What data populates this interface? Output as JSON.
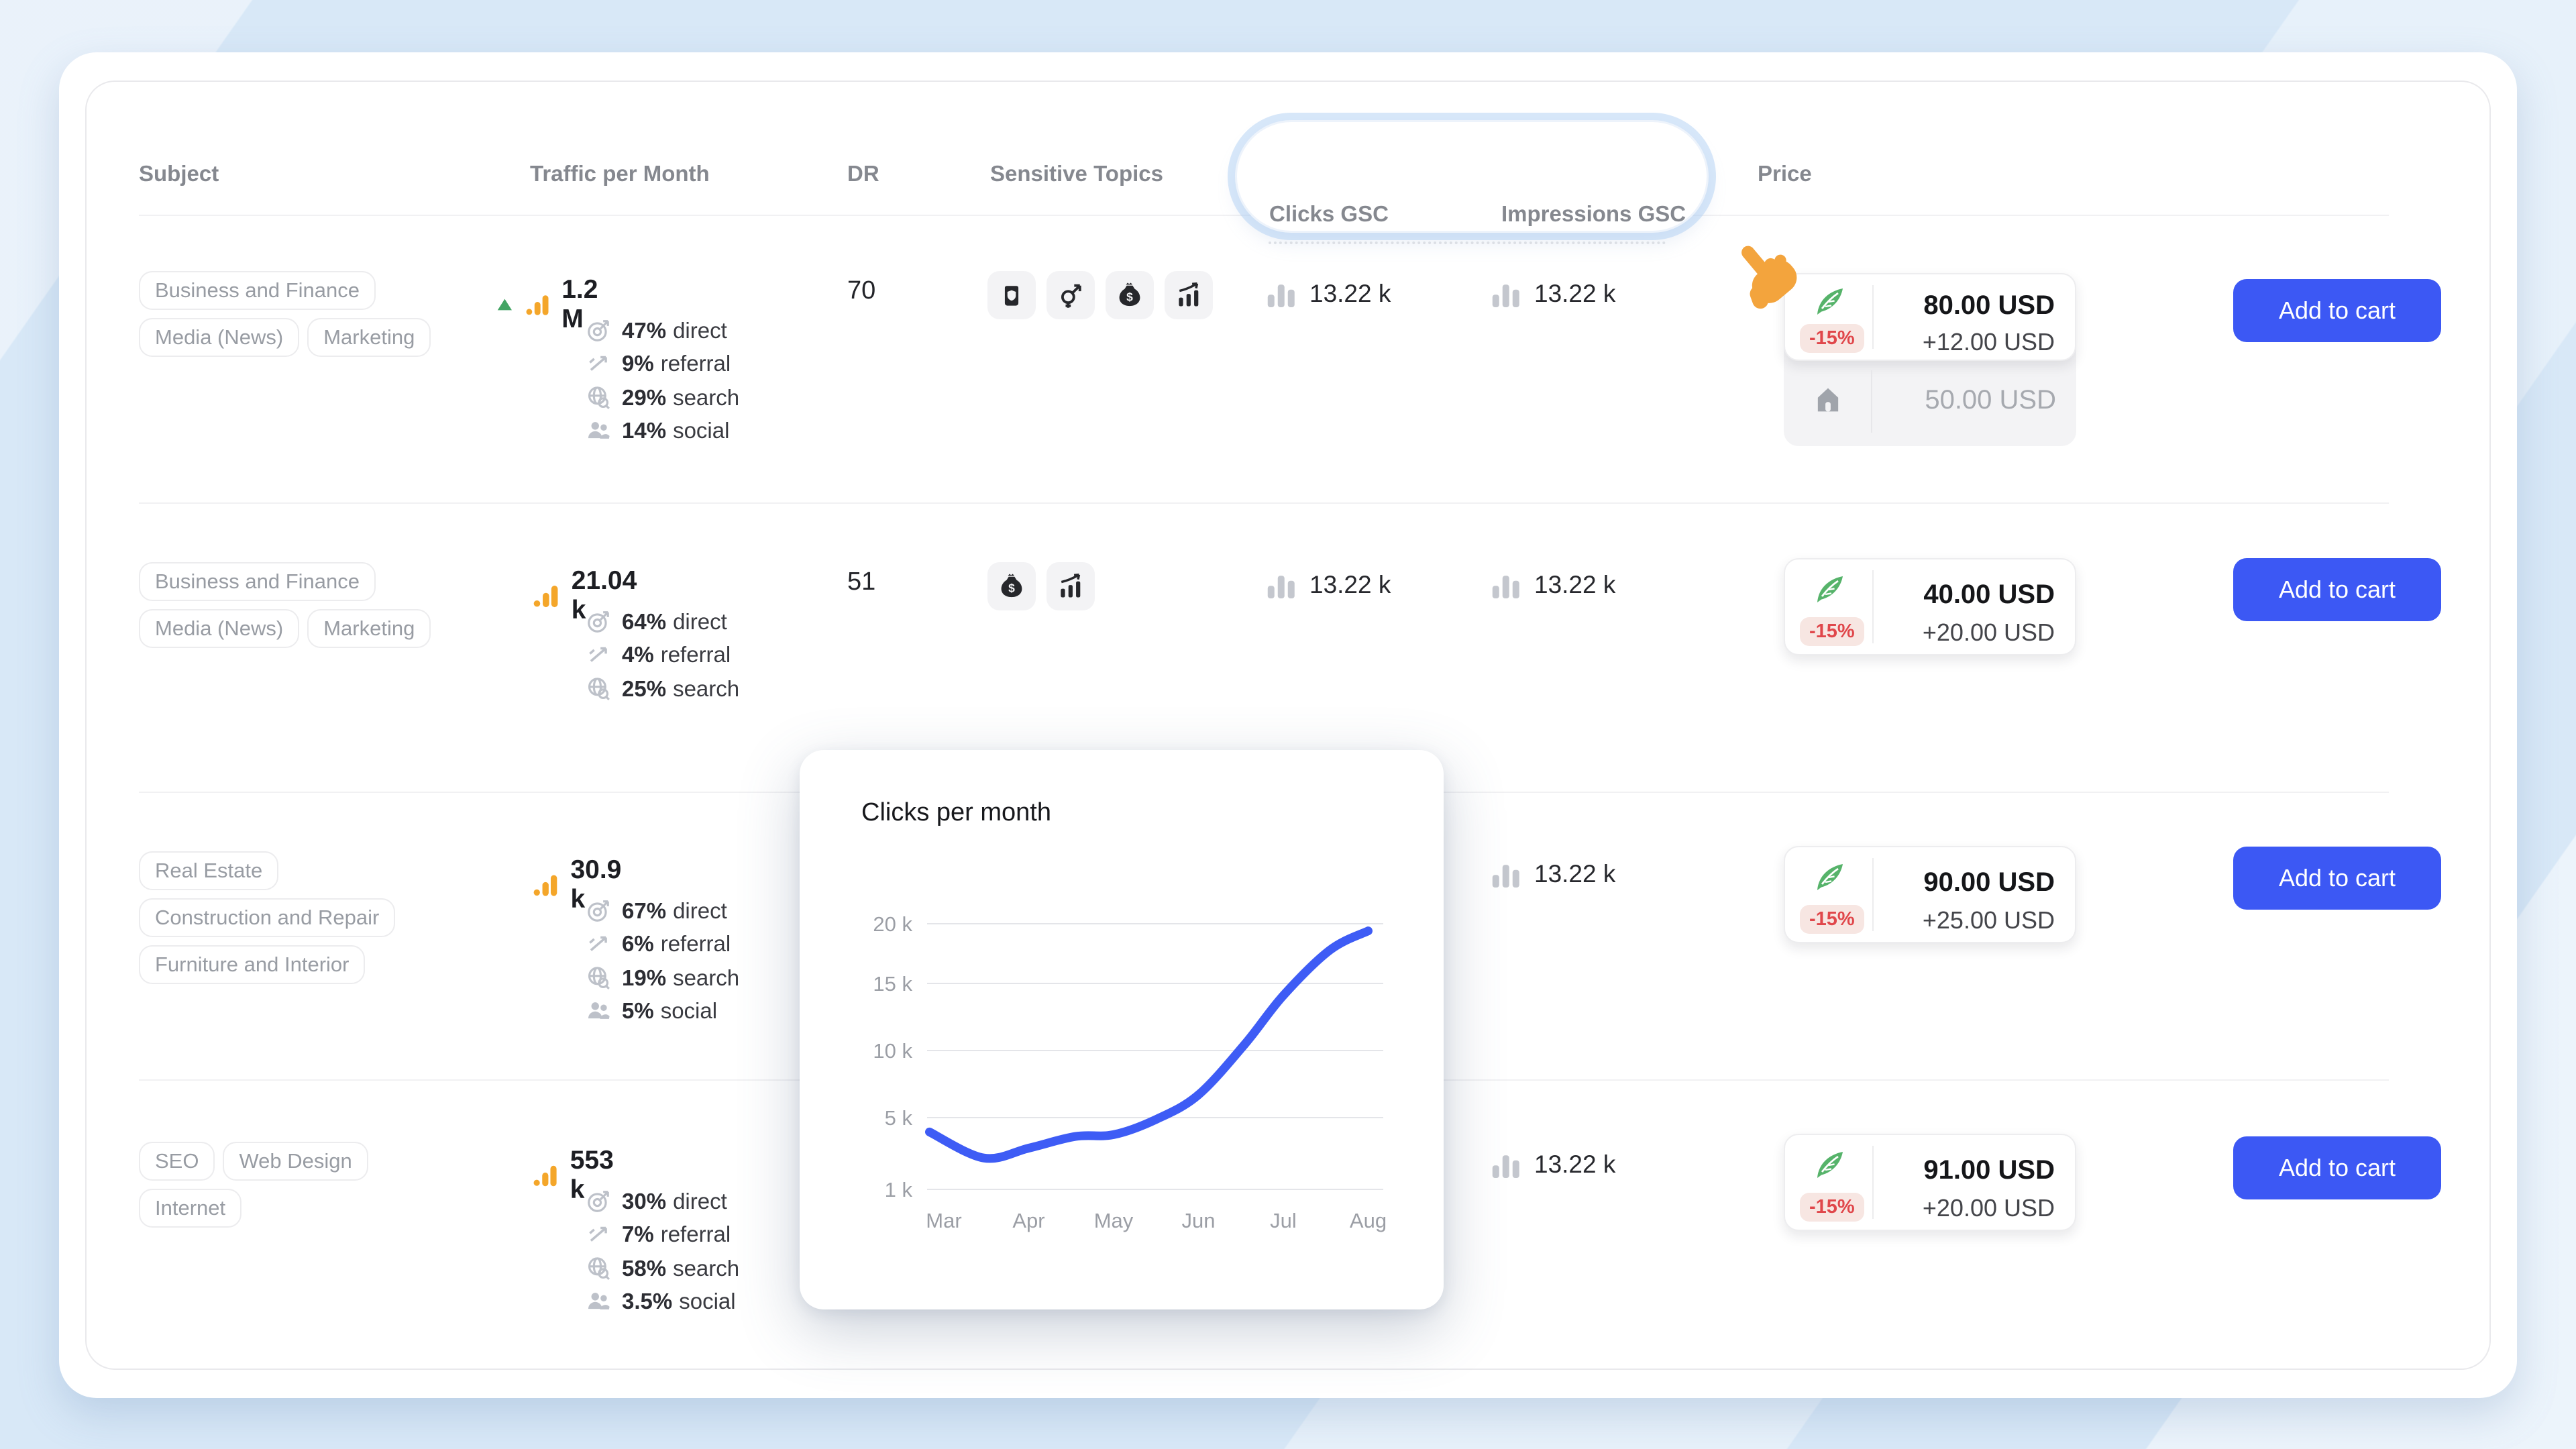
{
  "colors": {
    "accent_blue": "#3C58F4",
    "chart_line": "#3E5CF5",
    "traffic_orange": "#F4A62A",
    "trend_green": "#43A564",
    "feather_green": "#56B36A",
    "discount_red": "#E0474B",
    "cursor_orange": "#F3A43D",
    "page_bg": "#D8E8F7"
  },
  "header": {
    "subject": "Subject",
    "traffic": "Traffic per Month",
    "dr": "DR",
    "sensitive": "Sensitive Topics",
    "clicks": "Clicks GSC",
    "impressions": "Impressions GSC",
    "price": "Price"
  },
  "rows": [
    {
      "tags": [
        "Business and Finance",
        "Media (News)",
        "Marketing"
      ],
      "traffic_value": "1.2 M",
      "trend": "up",
      "breakdown": [
        [
          "47%",
          "direct"
        ],
        [
          "9%",
          "referral"
        ],
        [
          "29%",
          "search"
        ],
        [
          "14%",
          "social"
        ]
      ],
      "dr": "70",
      "sensitive_icons": [
        "alcohol-can",
        "gender",
        "money-bag",
        "growth-chart"
      ],
      "clicks": "13.22 k",
      "impressions": "13.22 k",
      "price": {
        "discount": "-15%",
        "main": "80.00 USD",
        "extra": "+12.00 USD",
        "base": "50.00 USD"
      },
      "cart": "Add to cart"
    },
    {
      "tags": [
        "Business and Finance",
        "Media (News)",
        "Marketing"
      ],
      "traffic_value": "21.04 k",
      "breakdown": [
        [
          "64%",
          "direct"
        ],
        [
          "4%",
          "referral"
        ],
        [
          "25%",
          "search"
        ]
      ],
      "dr": "51",
      "sensitive_icons": [
        "money-bag",
        "growth-chart"
      ],
      "clicks": "13.22 k",
      "impressions": "13.22 k",
      "price": {
        "discount": "-15%",
        "main": "40.00 USD",
        "extra": "+20.00 USD"
      },
      "cart": "Add to cart"
    },
    {
      "tags": [
        "Real Estate",
        "Construction and Repair",
        "Furniture and Interior"
      ],
      "traffic_value": "30.9 k",
      "breakdown": [
        [
          "67%",
          "direct"
        ],
        [
          "6%",
          "referral"
        ],
        [
          "19%",
          "search"
        ],
        [
          "5%",
          "social"
        ]
      ],
      "impressions": "13.22 k",
      "price": {
        "discount": "-15%",
        "main": "90.00 USD",
        "extra": "+25.00 USD"
      },
      "cart": "Add to cart"
    },
    {
      "tags": [
        "SEO",
        "Web Design",
        "Internet"
      ],
      "traffic_value": "553 k",
      "breakdown": [
        [
          "30%",
          "direct"
        ],
        [
          "7%",
          "referral"
        ],
        [
          "58%",
          "search"
        ],
        [
          "3.5%",
          "social"
        ]
      ],
      "impressions": "13.22 k",
      "price": {
        "discount": "-15%",
        "main": "91.00 USD",
        "extra": "+20.00 USD"
      },
      "cart": "Add to cart"
    }
  ],
  "chart_data": {
    "type": "line",
    "title": "Clicks per month",
    "categories": [
      "Mar",
      "Apr",
      "May",
      "Jun",
      "Jul",
      "Aug"
    ],
    "values": [
      4200,
      3300,
      4050,
      6700,
      14100,
      19400
    ],
    "curve_points": [
      [
        -0.17,
        4200
      ],
      [
        0.47,
        2750
      ],
      [
        1,
        3300
      ],
      [
        1.55,
        3950
      ],
      [
        2,
        4050
      ],
      [
        2.5,
        4900
      ],
      [
        3,
        6700
      ],
      [
        3.55,
        10500
      ],
      [
        4,
        14100
      ],
      [
        4.55,
        17800
      ],
      [
        5,
        19400
      ]
    ],
    "yticks": {
      "labels": [
        "20 k",
        "15 k",
        "10 k",
        "5 k",
        "1 k"
      ],
      "values": [
        20000,
        15000,
        10000,
        5000,
        1000
      ]
    },
    "xlabel": "",
    "ylabel": "",
    "ylim": [
      1000,
      21000
    ],
    "grid": true,
    "legend": false,
    "line_color": "#3E5CF5"
  }
}
